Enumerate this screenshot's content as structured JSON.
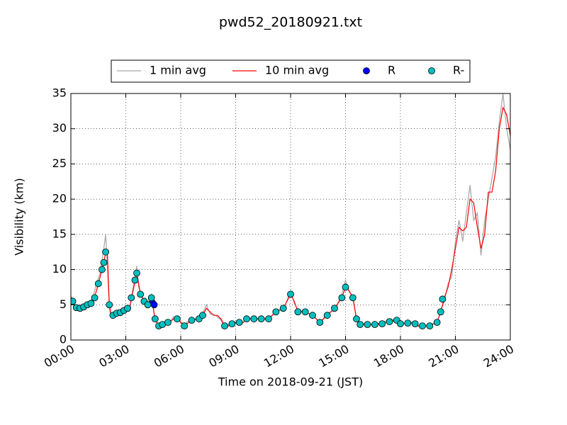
{
  "chart_data": {
    "type": "line",
    "title": "pwd52_20180921.txt",
    "x_label": "Time on 2018-09-21 (JST)",
    "y_label": "Visibility (km)",
    "xlim": [
      0,
      24
    ],
    "ylim": [
      0,
      35
    ],
    "xticks": [
      {
        "value": 0,
        "label": "00:00"
      },
      {
        "value": 3,
        "label": "03:00"
      },
      {
        "value": 6,
        "label": "06:00"
      },
      {
        "value": 9,
        "label": "09:00"
      },
      {
        "value": 12,
        "label": "12:00"
      },
      {
        "value": 15,
        "label": "15:00"
      },
      {
        "value": 18,
        "label": "18:00"
      },
      {
        "value": 21,
        "label": "21:00"
      },
      {
        "value": 24,
        "label": "24:00"
      }
    ],
    "yticks": [
      0,
      5,
      10,
      15,
      20,
      25,
      30,
      35
    ],
    "grid": true,
    "legend": "upper center",
    "series": [
      {
        "name": "1 min avg",
        "kind": "line",
        "color": "#aaaaaa",
        "x": [
          0,
          0.2,
          0.4,
          0.6,
          0.8,
          1.0,
          1.2,
          1.4,
          1.6,
          1.8,
          1.9,
          2.0,
          2.1,
          2.2,
          2.4,
          2.6,
          2.8,
          3.0,
          3.2,
          3.4,
          3.6,
          3.7,
          3.8,
          4.0,
          4.2,
          4.4,
          4.6,
          4.8,
          5.0,
          5.4,
          5.6,
          5.8,
          6.0,
          6.2,
          6.6,
          7.0,
          7.2,
          7.4,
          7.6,
          7.8,
          8.0,
          8.2,
          8.4,
          8.6,
          9.0,
          9.4,
          9.6,
          10.0,
          10.4,
          10.8,
          11.2,
          11.6,
          12.0,
          12.2,
          12.4,
          12.8,
          13.2,
          13.6,
          14.0,
          14.4,
          14.8,
          15.0,
          15.2,
          15.4,
          15.6,
          15.8,
          16.0,
          16.5,
          17.0,
          17.5,
          18.0,
          18.5,
          19.0,
          19.5,
          20.0,
          20.2,
          20.4,
          20.6,
          20.8,
          21.0,
          21.2,
          21.4,
          21.6,
          21.8,
          22.0,
          22.2,
          22.4,
          22.6,
          22.8,
          23.0,
          23.2,
          23.4,
          23.6,
          23.8,
          24.0
        ],
        "values": [
          6.3,
          4.8,
          4.2,
          4.7,
          5.3,
          5.2,
          6,
          8,
          9.5,
          13,
          15,
          10,
          4.5,
          3.2,
          3.8,
          4.3,
          3.6,
          4.8,
          4.2,
          7.5,
          10.5,
          7.5,
          6.8,
          5.2,
          5.4,
          6.5,
          2.8,
          2.1,
          2.6,
          2.4,
          3.3,
          2.8,
          2.6,
          2.2,
          3.1,
          2.9,
          3.8,
          5,
          3.7,
          3.6,
          3.3,
          2.8,
          1.8,
          2.2,
          2.6,
          2.4,
          3.2,
          2.9,
          3.2,
          2.8,
          4.3,
          4.2,
          7,
          5.2,
          4.3,
          3.8,
          3.7,
          2.4,
          3.8,
          4.2,
          6.5,
          8.5,
          6.8,
          6.3,
          2.8,
          2.1,
          2.4,
          2.1,
          2.5,
          3,
          2.2,
          2.7,
          1.9,
          2.1,
          2.4,
          4.3,
          5.5,
          8,
          9,
          14,
          17,
          14,
          18,
          22,
          17,
          18,
          12,
          17,
          20,
          23,
          26,
          31,
          35,
          30,
          27
        ]
      },
      {
        "name": "10 min avg",
        "kind": "line",
        "color": "#ff0000",
        "x": [
          0,
          0.2,
          0.4,
          0.6,
          0.8,
          1.0,
          1.2,
          1.4,
          1.6,
          1.8,
          1.9,
          2.0,
          2.1,
          2.2,
          2.4,
          2.6,
          2.8,
          3.0,
          3.2,
          3.4,
          3.6,
          3.7,
          3.8,
          4.0,
          4.2,
          4.4,
          4.6,
          4.8,
          5.0,
          5.4,
          5.6,
          5.8,
          6.0,
          6.2,
          6.6,
          7.0,
          7.2,
          7.4,
          7.6,
          7.8,
          8.0,
          8.2,
          8.4,
          8.6,
          9.0,
          9.4,
          9.6,
          10.0,
          10.4,
          10.8,
          11.2,
          11.6,
          12.0,
          12.2,
          12.4,
          12.8,
          13.2,
          13.6,
          14.0,
          14.4,
          14.8,
          15.0,
          15.2,
          15.4,
          15.6,
          15.8,
          16.0,
          16.5,
          17.0,
          17.5,
          18.0,
          18.5,
          19.0,
          19.5,
          20.0,
          20.2,
          20.4,
          20.6,
          20.8,
          21.0,
          21.2,
          21.4,
          21.6,
          21.8,
          22.0,
          22.2,
          22.4,
          22.6,
          22.8,
          23.0,
          23.2,
          23.4,
          23.6,
          23.8,
          24.0
        ],
        "values": [
          6,
          5,
          4.5,
          4.5,
          5,
          5,
          5.5,
          7,
          9,
          11,
          12.5,
          12,
          5,
          3.5,
          3.5,
          4,
          3.8,
          4.5,
          4.5,
          7,
          9.5,
          8,
          6.5,
          5.5,
          5,
          6,
          3,
          2,
          2.2,
          2.5,
          3,
          3,
          2.5,
          2,
          2.8,
          3,
          3.5,
          4.5,
          4,
          3.5,
          3.5,
          3,
          2,
          2,
          2.5,
          2.5,
          3,
          3,
          3,
          3,
          4,
          4.5,
          6.5,
          5.5,
          4,
          4,
          3.5,
          2.5,
          3.5,
          4.5,
          6,
          7.5,
          7,
          6,
          3,
          2.2,
          2.2,
          2.2,
          2.3,
          2.8,
          2.3,
          2.5,
          2,
          2,
          2.5,
          4,
          6,
          7.5,
          10,
          13,
          16,
          15.5,
          16,
          20,
          19.5,
          16,
          13,
          15,
          21,
          21,
          24,
          30,
          33,
          32,
          29
        ]
      },
      {
        "name": "R",
        "kind": "scatter",
        "color": "#0000ff",
        "x": [
          4.45,
          4.55
        ],
        "values": [
          5.3,
          5.0
        ]
      },
      {
        "name": "R-",
        "kind": "scatter",
        "color": "#00bfbf",
        "x": [
          0.1,
          0.3,
          0.5,
          0.7,
          0.9,
          1.1,
          1.3,
          1.5,
          1.7,
          1.8,
          1.9,
          2.1,
          2.3,
          2.5,
          2.7,
          2.9,
          3.1,
          3.3,
          3.5,
          3.6,
          3.8,
          4.0,
          4.2,
          4.4,
          4.6,
          4.8,
          5.0,
          5.3,
          5.8,
          6.2,
          6.6,
          7.0,
          7.2,
          8.4,
          8.8,
          9.2,
          9.6,
          10.0,
          10.4,
          10.8,
          11.2,
          11.6,
          12.0,
          12.4,
          12.8,
          13.2,
          13.6,
          14.0,
          14.4,
          14.8,
          15.0,
          15.4,
          15.6,
          15.8,
          16.2,
          16.6,
          17.0,
          17.4,
          17.8,
          18.0,
          18.4,
          18.8,
          19.2,
          19.6,
          20.0,
          20.2,
          20.3
        ],
        "values": [
          5.5,
          4.6,
          4.5,
          4.7,
          5,
          5.2,
          6,
          8,
          10,
          11,
          12.5,
          5,
          3.5,
          3.8,
          3.9,
          4.2,
          4.5,
          6,
          8.5,
          9.5,
          6.5,
          5.5,
          5,
          6,
          3,
          2,
          2.2,
          2.5,
          3,
          2,
          2.8,
          3,
          3.5,
          2,
          2.3,
          2.5,
          3,
          3,
          3,
          3,
          4,
          4.5,
          6.5,
          4,
          4,
          3.5,
          2.5,
          3.5,
          4.5,
          6,
          7.5,
          6,
          3,
          2.2,
          2.2,
          2.2,
          2.3,
          2.6,
          2.8,
          2.3,
          2.4,
          2.3,
          2,
          2,
          2.5,
          4,
          5.8
        ]
      }
    ]
  }
}
